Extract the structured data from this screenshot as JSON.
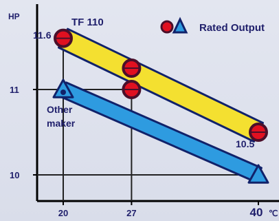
{
  "chart_data": {
    "type": "line",
    "ylabel": "HP",
    "xlabel_unit": "℃",
    "x_ticks": [
      "20",
      "27",
      "40"
    ],
    "y_ticks": [
      "10",
      "11"
    ],
    "xlim": [
      17,
      42
    ],
    "ylim": [
      9.5,
      12
    ],
    "legend": {
      "label": "Rated Output",
      "position": "top-right"
    },
    "grid": false,
    "series": [
      {
        "name": "TF 110",
        "x": [
          20,
          27,
          40
        ],
        "y": [
          11.6,
          11.25,
          10.5
        ],
        "color": "#f4e030",
        "marker": "circle"
      },
      {
        "name": "Other maker",
        "x": [
          20,
          40
        ],
        "y": [
          11.0,
          10.0
        ],
        "color": "#2e9be0",
        "marker": "triangle"
      }
    ],
    "rated_output_markers": [
      {
        "x": 20,
        "y": 11.6,
        "marker": "circle"
      },
      {
        "x": 27,
        "y": 11.25,
        "marker": "circle"
      },
      {
        "x": 27,
        "y": 11.0,
        "marker": "circle"
      },
      {
        "x": 40,
        "y": 10.5,
        "marker": "circle"
      },
      {
        "x": 20,
        "y": 11.0,
        "marker": "triangle"
      },
      {
        "x": 40,
        "y": 10.0,
        "marker": "triangle"
      }
    ],
    "annotations": [
      {
        "text": "11.6",
        "x": 20,
        "y": 11.6
      },
      {
        "text": "10.5",
        "x": 40,
        "y": 10.5
      },
      {
        "text": "TF 110"
      },
      {
        "text": "Other",
        "text2": "maker"
      }
    ],
    "colors": {
      "axis": "#000000",
      "grid": "#222222",
      "text": "#1f1f6b",
      "circle_fill": "#e01020",
      "circle_stroke": "#4a0f2a",
      "triangle_fill": "#2e9be0"
    }
  }
}
